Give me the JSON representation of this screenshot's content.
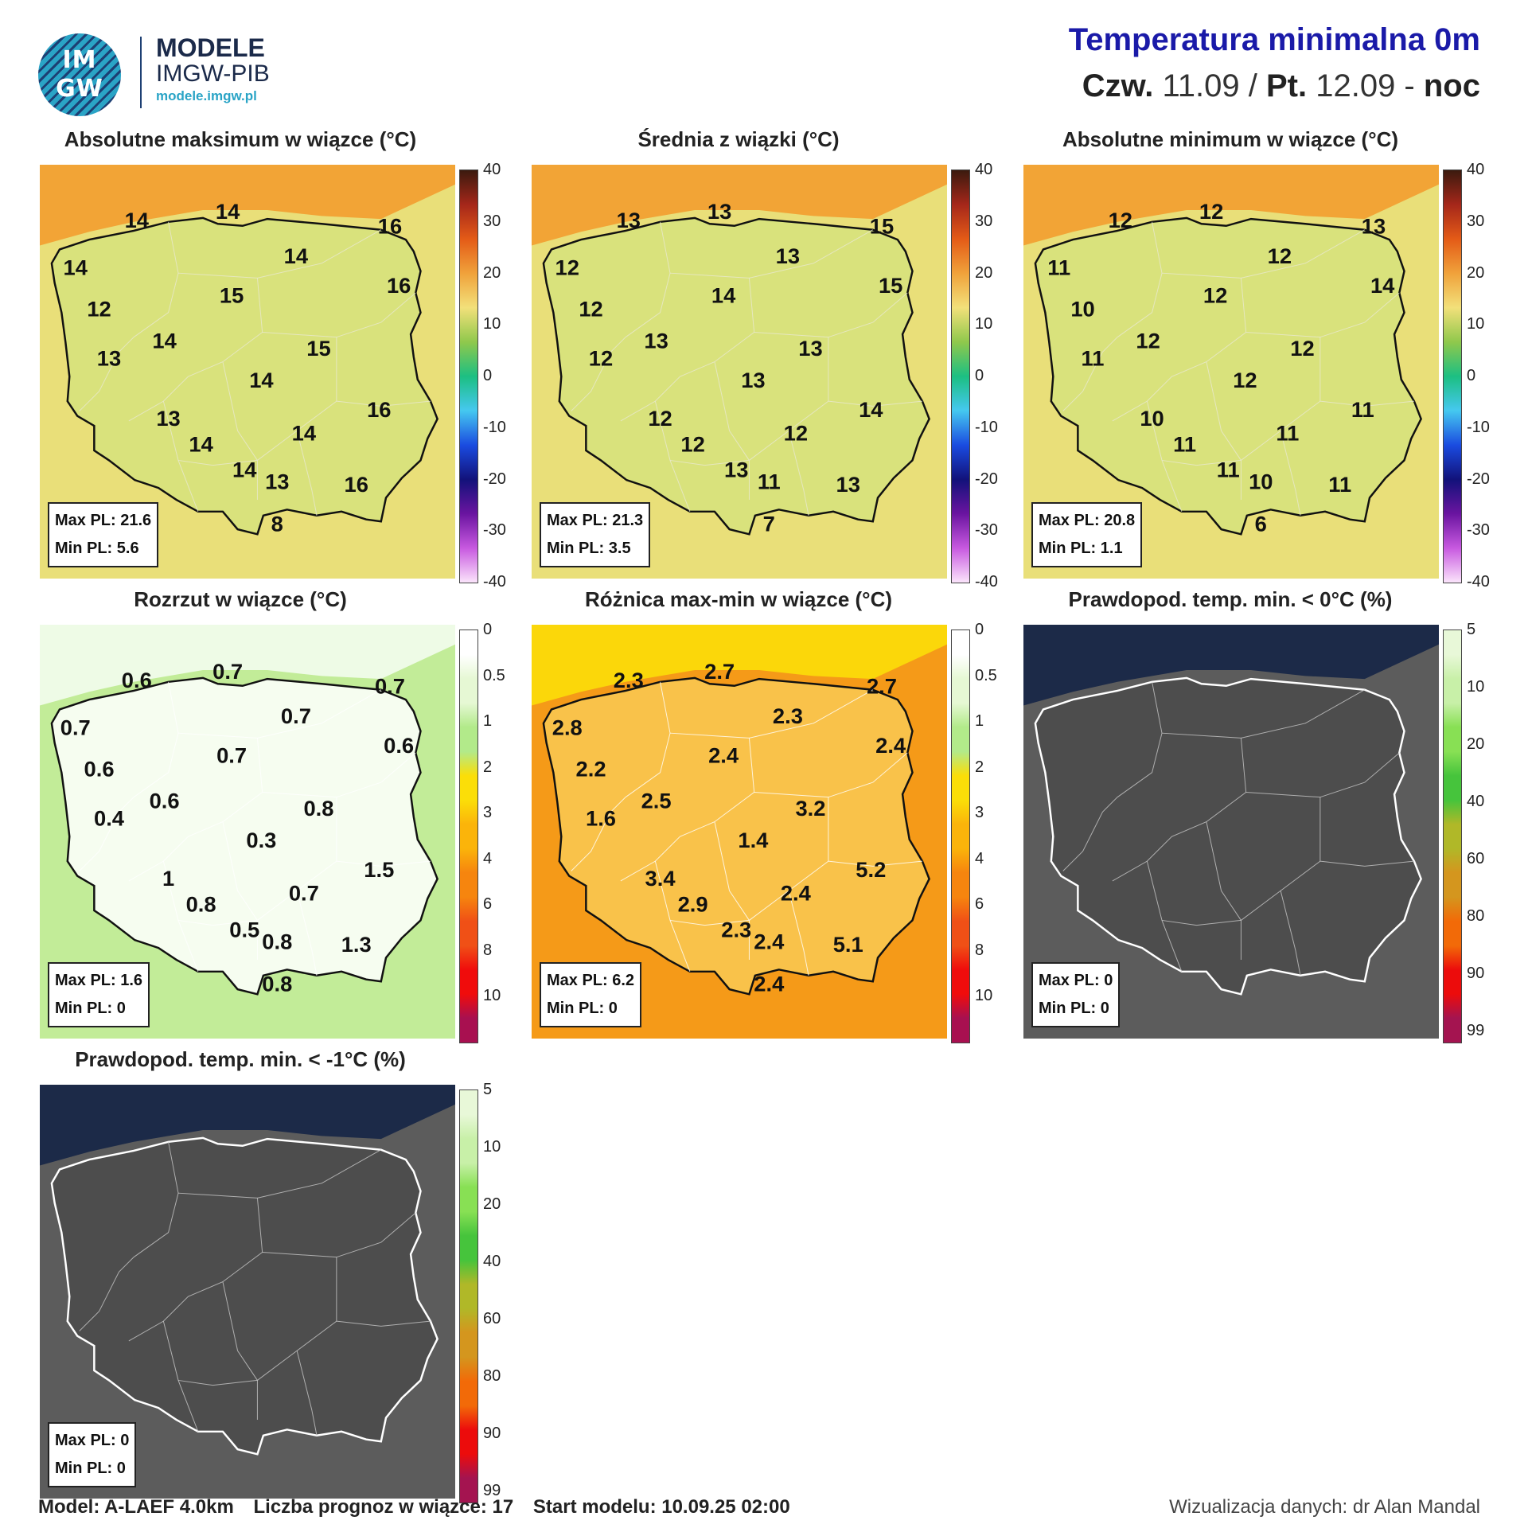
{
  "logo": {
    "circle_top": "IM",
    "circle_bottom": "GW",
    "title": "MODELE",
    "subtitle": "IMGW-PIB",
    "url": "modele.imgw.pl"
  },
  "header": {
    "title": "Temperatura minimalna 0m",
    "day1": "Czw.",
    "date1": " 11.09 / ",
    "day2": "Pt.",
    "date2": " 12.09 - ",
    "period": "noc"
  },
  "panels": [
    {
      "title": "Absolutne maksimum w wiązce (°C)",
      "stat_max": "Max PL: 21.6",
      "stat_min": "Min PL: 5.6",
      "scale": "temp",
      "labels": [
        "14",
        "14",
        "16",
        "14",
        "14",
        "16",
        "12",
        "15",
        "14",
        "15",
        "13",
        "14",
        "13",
        "16",
        "14",
        "14",
        "14",
        "13",
        "16",
        "8"
      ]
    },
    {
      "title": "Średnia z wiązki (°C)",
      "stat_max": "Max PL: 21.3",
      "stat_min": "Min PL: 3.5",
      "scale": "temp",
      "labels": [
        "13",
        "13",
        "15",
        "12",
        "13",
        "15",
        "12",
        "14",
        "13",
        "13",
        "12",
        "13",
        "12",
        "14",
        "12",
        "12",
        "13",
        "11",
        "13",
        "7"
      ]
    },
    {
      "title": "Absolutne minimum w wiązce (°C)",
      "stat_max": "Max PL: 20.8",
      "stat_min": "Min PL: 1.1",
      "scale": "temp",
      "labels": [
        "12",
        "12",
        "13",
        "11",
        "12",
        "14",
        "10",
        "12",
        "12",
        "12",
        "11",
        "12",
        "10",
        "11",
        "11",
        "11",
        "11",
        "10",
        "11",
        "6"
      ]
    },
    {
      "title": "Rozrzut w wiązce (°C)",
      "stat_max": "Max PL: 1.6",
      "stat_min": "Min PL: 0",
      "scale": "spread",
      "labels": [
        "0.6",
        "0.7",
        "0.7",
        "0.7",
        "0.7",
        "0.6",
        "0.6",
        "0.7",
        "0.6",
        "0.8",
        "0.4",
        "0.3",
        "1",
        "1.5",
        "0.8",
        "0.7",
        "0.5",
        "0.8",
        "1.3",
        "0.8"
      ]
    },
    {
      "title": "Różnica max-min w wiązce (°C)",
      "stat_max": "Max PL: 6.2",
      "stat_min": "Min PL: 0",
      "scale": "spread",
      "labels": [
        "2.3",
        "2.7",
        "2.7",
        "2.8",
        "2.3",
        "2.4",
        "2.2",
        "2.4",
        "2.5",
        "3.2",
        "1.6",
        "1.4",
        "3.4",
        "5.2",
        "2.9",
        "2.4",
        "2.3",
        "2.4",
        "5.1",
        "2.4"
      ]
    },
    {
      "title": "Prawdopod. temp. min. < 0°C (%)",
      "stat_max": "Max PL: 0",
      "stat_min": "Min PL: 0",
      "scale": "prob",
      "labels": []
    },
    {
      "title": "Prawdopod. temp. min. < -1°C (%)",
      "stat_max": "Max PL: 0",
      "stat_min": "Min PL: 0",
      "scale": "prob",
      "labels": []
    }
  ],
  "scales": {
    "temp": {
      "ticks": [
        "40",
        "30",
        "20",
        "10",
        "0",
        "-10",
        "-20",
        "-30",
        "-40"
      ]
    },
    "spread": {
      "ticks": [
        "0",
        "0.5",
        "1",
        "2",
        "3",
        "4",
        "6",
        "8",
        "10"
      ]
    },
    "prob": {
      "ticks": [
        "5",
        "10",
        "20",
        "40",
        "60",
        "80",
        "90",
        "99"
      ]
    }
  },
  "footer": {
    "model": "Model: A-LAEF 4.0km",
    "members": "Liczba prognoz w wiązce: 17",
    "start": "Start modelu: 10.09.25  02:00",
    "credit": "Wizualizacja danych: dr Alan Mandal"
  },
  "colors": {
    "sea_temp": "#f2a436",
    "land_temp": "#e9df79",
    "sea_spread": "#eefbe6",
    "land_spread": "#c2ec98",
    "sea_diff": "#fbd70a",
    "land_diff": "#f59a18",
    "sea_prob": "#1c2a48",
    "land_prob": "#5c5c5c",
    "header_title": "#1a1aa8"
  }
}
